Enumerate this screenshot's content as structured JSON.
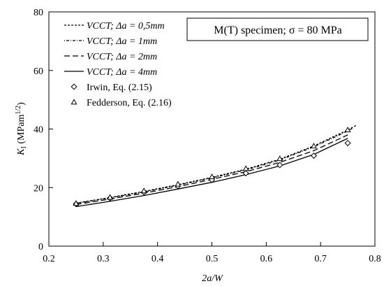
{
  "chart_data": {
    "type": "line",
    "annotation": "M(T) specimen; σ = 80 MPa",
    "xlabel": "2a/W",
    "ylabel": "K",
    "ylabel_sub": "I",
    "ylabel_unit": " (MPam",
    "ylabel_unit_sup": "1/2",
    "ylabel_unit_close": ")",
    "xlim": [
      0.2,
      0.8
    ],
    "ylim": [
      0,
      80
    ],
    "xticks": [
      "0.2",
      "0.3",
      "0.4",
      "0.5",
      "0.6",
      "0.7",
      "0.8"
    ],
    "yticks": [
      "0",
      "20",
      "40",
      "60",
      "80"
    ],
    "grid": false,
    "legend_position": "top-left",
    "series": [
      {
        "name": "VCCT; Δa = 0,5mm",
        "style": "short-dash",
        "x": [
          0.25,
          0.3125,
          0.375,
          0.4375,
          0.5,
          0.5625,
          0.625,
          0.6875,
          0.75,
          0.765
        ],
        "y": [
          14.7,
          16.6,
          18.7,
          21.0,
          23.5,
          26.3,
          29.7,
          34.2,
          39.7,
          41.2
        ]
      },
      {
        "name": "VCCT; Δa = 1mm",
        "style": "dot-dash",
        "x": [
          0.25,
          0.3125,
          0.375,
          0.4375,
          0.5,
          0.5625,
          0.625,
          0.6875,
          0.75,
          0.76
        ],
        "y": [
          14.6,
          16.5,
          18.5,
          20.8,
          23.3,
          26.0,
          29.4,
          33.9,
          39.3,
          40.4
        ]
      },
      {
        "name": "VCCT; Δa = 2mm",
        "style": "long-dash",
        "x": [
          0.25,
          0.3125,
          0.375,
          0.4375,
          0.5,
          0.5625,
          0.625,
          0.6875,
          0.75
        ],
        "y": [
          14.2,
          16.1,
          18.1,
          20.3,
          22.8,
          25.4,
          28.6,
          32.6,
          38.0
        ]
      },
      {
        "name": "VCCT; Δa = 4mm",
        "style": "solid",
        "x": [
          0.25,
          0.3125,
          0.375,
          0.4375,
          0.5,
          0.5625,
          0.625,
          0.6875,
          0.75
        ],
        "y": [
          13.5,
          15.3,
          17.3,
          19.5,
          21.8,
          24.4,
          27.4,
          31.3,
          36.8
        ]
      },
      {
        "name": "Irwin, Eq. (2.15)",
        "style": "diamond",
        "x": [
          0.25,
          0.3125,
          0.375,
          0.4375,
          0.5,
          0.5625,
          0.625,
          0.6875,
          0.75
        ],
        "y": [
          14.4,
          16.4,
          18.4,
          20.5,
          22.6,
          24.9,
          27.7,
          30.9,
          35.2
        ]
      },
      {
        "name": "Fedderson, Eq. (2.16)",
        "style": "triangle",
        "x": [
          0.25,
          0.3125,
          0.375,
          0.4375,
          0.5,
          0.5625,
          0.625,
          0.6875,
          0.75
        ],
        "y": [
          14.6,
          16.7,
          18.9,
          21.2,
          23.7,
          26.5,
          29.9,
          34.2,
          39.7
        ]
      }
    ]
  }
}
